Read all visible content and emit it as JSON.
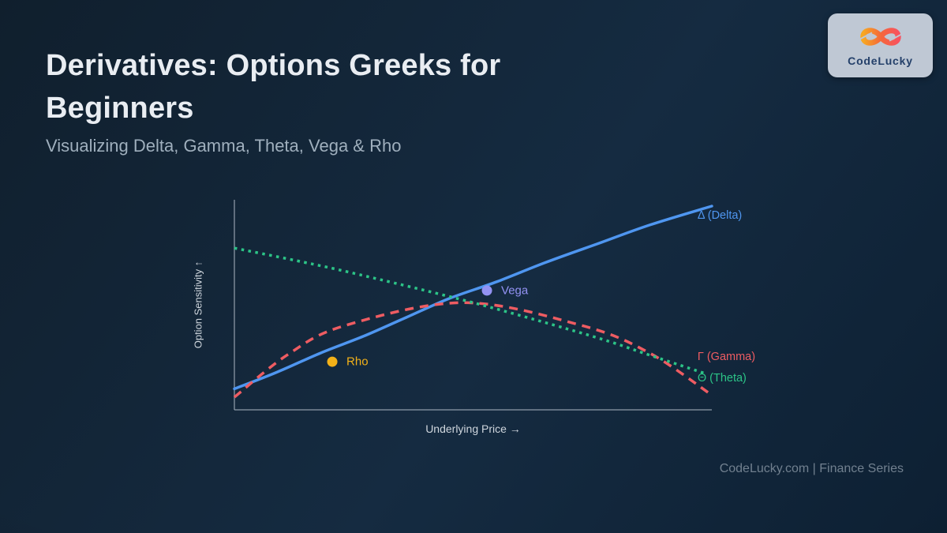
{
  "header": {
    "title": "Derivatives: Options Greeks for Beginners",
    "subtitle": "Visualizing Delta, Gamma, Theta, Vega & Rho"
  },
  "logo": {
    "brand": "CodeLucky",
    "icon": "infinity-icon",
    "box_color": "#bfc8d4",
    "text_color": "#24406a",
    "gradient": [
      "#f7a823",
      "#f4683a",
      "#f8525f"
    ]
  },
  "footer": {
    "text": "CodeLucky.com | Finance Series"
  },
  "chart_data": {
    "type": "line",
    "xlabel": "Underlying Price →",
    "ylabel": "Option Sensitivity ↑",
    "grid": false,
    "axis_color": "rgba(160,172,184,0.55)",
    "x_range_normalized": [
      0,
      1
    ],
    "y_range_normalized": [
      0,
      1
    ],
    "legend_position": "inline-labels",
    "series": [
      {
        "name": "Delta",
        "label": "Δ (Delta)",
        "color": "#4f96f0",
        "style": "solid",
        "label_pos": [
          0.97,
          0.925
        ],
        "points": [
          [
            0,
            0.1
          ],
          [
            0.09,
            0.18
          ],
          [
            0.18,
            0.27
          ],
          [
            0.27,
            0.35
          ],
          [
            0.36,
            0.44
          ],
          [
            0.45,
            0.53
          ],
          [
            0.55,
            0.61
          ],
          [
            0.65,
            0.7
          ],
          [
            0.76,
            0.79
          ],
          [
            0.87,
            0.88
          ],
          [
            1.0,
            0.97
          ]
        ]
      },
      {
        "name": "Gamma",
        "label": "Γ (Gamma)",
        "color": "#ee5c62",
        "style": "dashed",
        "label_pos": [
          0.97,
          0.252
        ],
        "points": [
          [
            0,
            0.06
          ],
          [
            0.11,
            0.26
          ],
          [
            0.23,
            0.4
          ],
          [
            0.48,
            0.51
          ],
          [
            0.73,
            0.4
          ],
          [
            0.87,
            0.27
          ],
          [
            1.0,
            0.07
          ]
        ]
      },
      {
        "name": "Theta",
        "label": "Θ (Theta)",
        "color": "#2cc487",
        "style": "dotted",
        "label_pos": [
          0.97,
          0.15
        ],
        "points": [
          [
            0,
            0.77
          ],
          [
            0.13,
            0.71
          ],
          [
            0.25,
            0.65
          ],
          [
            0.5,
            0.51
          ],
          [
            0.75,
            0.35
          ],
          [
            0.87,
            0.26
          ],
          [
            0.99,
            0.17
          ]
        ]
      }
    ],
    "markers": [
      {
        "name": "Vega",
        "label": "Vega",
        "color": "#9392f3",
        "point": [
          0.529,
          0.568
        ]
      },
      {
        "name": "Rho",
        "label": "Rho",
        "color": "#f3b118",
        "point": [
          0.205,
          0.229
        ]
      }
    ]
  }
}
